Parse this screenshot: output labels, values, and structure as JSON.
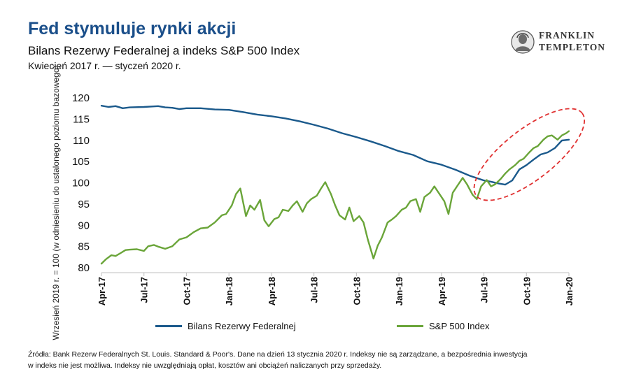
{
  "header": {
    "title": "Fed stymuluje rynki akcji",
    "subtitle": "Bilans Rezerwy Federalnej a indeks S&P 500 Index",
    "period": "Kwiecień 2017 r. — styczeń 2020 r."
  },
  "logo": {
    "line1": "FRANKLIN",
    "line2": "TEMPLETON"
  },
  "colors": {
    "fed": "#1b5a8c",
    "sp500": "#6aa539",
    "highlight": "#e03030",
    "title": "#1b4f8a"
  },
  "chart_data": {
    "type": "line",
    "title": "Fed stymuluje rynki akcji",
    "ylabel": "Wrzesień 2019 r. = 100 (w odniesieniu do ustalonego poziomu bazowego)",
    "xlabel": "",
    "ylim": [
      80,
      120
    ],
    "yticks": [
      "80",
      "85",
      "90",
      "95",
      "100",
      "105",
      "110",
      "115",
      "120"
    ],
    "xlim": [
      0,
      33
    ],
    "xticks": [
      {
        "x": 0,
        "label": "Apr-17"
      },
      {
        "x": 3,
        "label": "Jul-17"
      },
      {
        "x": 6,
        "label": "Oct-17"
      },
      {
        "x": 9,
        "label": "Jan-18"
      },
      {
        "x": 12,
        "label": "Apr-18"
      },
      {
        "x": 15,
        "label": "Jul-18"
      },
      {
        "x": 18,
        "label": "Oct-18"
      },
      {
        "x": 21,
        "label": "Jan-19"
      },
      {
        "x": 24,
        "label": "Apr-19"
      },
      {
        "x": 27,
        "label": "Jul-19"
      },
      {
        "x": 30,
        "label": "Oct-19"
      },
      {
        "x": 33,
        "label": "Jan-20"
      }
    ],
    "series": [
      {
        "name": "Bilans Rezerwy Federalnej",
        "x": [
          0,
          0.5,
          1,
          1.5,
          2,
          3,
          4,
          4.5,
          5,
          5.5,
          6,
          7,
          8,
          9,
          10,
          11,
          12,
          13,
          14,
          15,
          16,
          17,
          18,
          19,
          20,
          21,
          22,
          23,
          24,
          25,
          26,
          27,
          27.5,
          28,
          28.5,
          29,
          29.5,
          30,
          30.5,
          31,
          31.5,
          32,
          32.5,
          33
        ],
        "values": [
          118,
          117.7,
          117.9,
          117.4,
          117.6,
          117.7,
          117.9,
          117.6,
          117.5,
          117.2,
          117.4,
          117.4,
          117.1,
          117.0,
          116.5,
          115.9,
          115.5,
          115.0,
          114.3,
          113.5,
          112.6,
          111.5,
          110.6,
          109.6,
          108.5,
          107.3,
          106.4,
          104.9,
          104.1,
          102.9,
          101.5,
          100.4,
          100.1,
          99.7,
          99.4,
          100.4,
          103.0,
          104.0,
          105.3,
          106.5,
          107.0,
          108.0,
          109.8,
          110.0
        ]
      },
      {
        "name": "S&P 500 Index",
        "x": [
          0,
          0.3,
          0.7,
          1,
          1.3,
          1.7,
          2,
          2.5,
          3,
          3.3,
          3.7,
          4,
          4.5,
          5,
          5.5,
          6,
          6.5,
          7,
          7.5,
          8,
          8.5,
          8.8,
          9.2,
          9.5,
          9.8,
          10.2,
          10.5,
          10.8,
          11.2,
          11.5,
          11.8,
          12.2,
          12.5,
          12.8,
          13.2,
          13.5,
          13.8,
          14.2,
          14.5,
          14.8,
          15.2,
          15.5,
          15.8,
          16.2,
          16.5,
          16.8,
          17.2,
          17.5,
          17.8,
          18.2,
          18.5,
          18.8,
          19.2,
          19.5,
          19.8,
          20.2,
          20.5,
          20.8,
          21.2,
          21.5,
          21.8,
          22.2,
          22.5,
          22.8,
          23.2,
          23.5,
          23.8,
          24.2,
          24.5,
          24.8,
          25.2,
          25.5,
          25.8,
          26.2,
          26.5,
          26.8,
          27.2,
          27.5,
          27.8,
          28.2,
          28.5,
          28.8,
          29.2,
          29.5,
          29.8,
          30.2,
          30.5,
          30.8,
          31.2,
          31.5,
          31.8,
          32.2,
          32.5,
          32.8,
          33
        ],
        "values": [
          80.8,
          81.8,
          82.8,
          82.6,
          83.2,
          84.0,
          84.1,
          84.2,
          83.8,
          84.9,
          85.2,
          84.8,
          84.3,
          84.9,
          86.5,
          87.0,
          88.2,
          89.1,
          89.3,
          90.5,
          92.2,
          92.5,
          94.5,
          97.2,
          98.5,
          92.0,
          94.5,
          93.5,
          95.8,
          91.0,
          89.6,
          91.3,
          91.7,
          93.5,
          93.2,
          94.5,
          95.5,
          93.0,
          95.0,
          96.0,
          96.8,
          98.5,
          100.0,
          97.2,
          94.5,
          92.2,
          91.2,
          94.0,
          90.8,
          92.0,
          90.5,
          86.5,
          82.0,
          85.0,
          87.0,
          90.5,
          91.2,
          92.0,
          93.5,
          94.0,
          95.5,
          96.0,
          93.0,
          96.5,
          97.5,
          99.0,
          97.5,
          95.5,
          92.5,
          97.5,
          99.5,
          101.0,
          99.5,
          97.0,
          96.0,
          99.0,
          100.5,
          99.0,
          99.5,
          100.8,
          102.0,
          103.0,
          104.0,
          105.0,
          105.5,
          107.0,
          108.0,
          108.5,
          110.0,
          110.8,
          111.0,
          110.0,
          111.0,
          111.5,
          112.0
        ]
      }
    ],
    "legend": "bottom",
    "annotation": "dashed ellipse highlighting the rise from Sep-19 to Jan-20"
  },
  "legend": {
    "fed": "Bilans Rezerwy Federalnej",
    "sp500": "S&P 500 Index"
  },
  "source": {
    "line1": "Źródła: Bank Rezerw Federalnych St. Louis. Standard & Poor's. Dane na dzień 13 stycznia 2020 r. Indeksy nie są zarządzane, a bezpośrednia inwestycja",
    "line2": "w indeks nie jest możliwa. Indeksy nie uwzględniają opłat, kosztów ani obciążeń naliczanych przy sprzedaży."
  }
}
